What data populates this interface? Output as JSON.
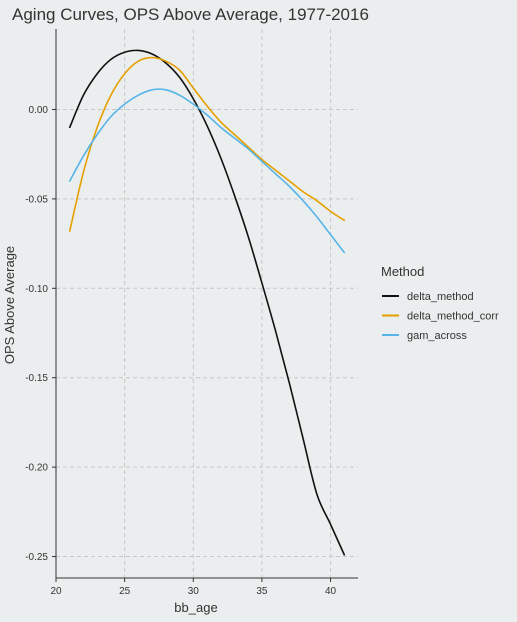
{
  "chart_data": {
    "type": "line",
    "title": "Aging Curves, OPS Above Average, 1977-2016",
    "xlabel": "bb_age",
    "ylabel": "OPS Above Average",
    "xlim": [
      20,
      42
    ],
    "ylim": [
      -0.262,
      0.045
    ],
    "x_ticks": [
      20,
      25,
      30,
      35,
      40
    ],
    "y_ticks": [
      0.0,
      -0.05,
      -0.1,
      -0.15,
      -0.2,
      -0.25
    ],
    "x_tick_labels": [
      "20",
      "25",
      "30",
      "35",
      "40"
    ],
    "y_tick_labels": [
      "0.00",
      "-0.05",
      "-0.10",
      "-0.15",
      "-0.20",
      "-0.25"
    ],
    "grid": true,
    "legend": {
      "title": "Method",
      "placement": "right"
    },
    "series": [
      {
        "name": "delta_method",
        "color": "#111111",
        "x": [
          21,
          22,
          23,
          24,
          25,
          26,
          27,
          28,
          29,
          30,
          31,
          32,
          33,
          34,
          35,
          36,
          37,
          38,
          39,
          40,
          41
        ],
        "y": [
          -0.01,
          0.008,
          0.02,
          0.028,
          0.032,
          0.033,
          0.031,
          0.026,
          0.018,
          0.006,
          -0.009,
          -0.027,
          -0.048,
          -0.071,
          -0.097,
          -0.124,
          -0.153,
          -0.184,
          -0.215,
          -0.232,
          -0.249
        ]
      },
      {
        "name": "delta_method_corr",
        "color": "#e69f00",
        "x": [
          21,
          22,
          23,
          24,
          25,
          26,
          27,
          28,
          29,
          30,
          31,
          32,
          33,
          34,
          35,
          36,
          37,
          38,
          39,
          40,
          41
        ],
        "y": [
          -0.068,
          -0.035,
          -0.01,
          0.008,
          0.02,
          0.027,
          0.029,
          0.027,
          0.022,
          0.012,
          0.002,
          -0.007,
          -0.014,
          -0.021,
          -0.028,
          -0.034,
          -0.04,
          -0.046,
          -0.051,
          -0.057,
          -0.062
        ]
      },
      {
        "name": "gam_across",
        "color": "#56b4e9",
        "x": [
          21,
          22,
          23,
          24,
          25,
          26,
          27,
          28,
          29,
          30,
          31,
          32,
          33,
          34,
          35,
          36,
          37,
          38,
          39,
          40,
          41
        ],
        "y": [
          -0.04,
          -0.026,
          -0.014,
          -0.004,
          0.003,
          0.008,
          0.011,
          0.011,
          0.008,
          0.003,
          -0.003,
          -0.01,
          -0.016,
          -0.022,
          -0.029,
          -0.036,
          -0.043,
          -0.051,
          -0.06,
          -0.07,
          -0.08
        ]
      }
    ]
  }
}
